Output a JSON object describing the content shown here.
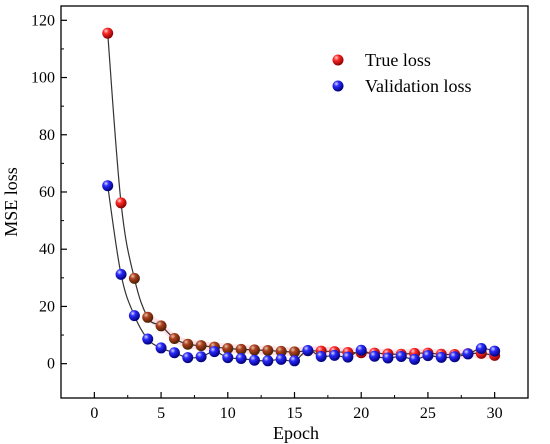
{
  "chart_data": {
    "type": "scatter",
    "xlabel": "Epoch",
    "ylabel": "MSE loss",
    "xlim": [
      -2.5,
      32.5
    ],
    "ylim": [
      -12,
      125
    ],
    "xticks": [
      "0",
      "5",
      "10",
      "15",
      "20",
      "25",
      "30"
    ],
    "yticks": [
      "0",
      "20",
      "40",
      "60",
      "80",
      "100",
      "120"
    ],
    "xtick_values": [
      0,
      5,
      10,
      15,
      20,
      25,
      30
    ],
    "ytick_values": [
      0,
      20,
      40,
      60,
      80,
      100,
      120
    ],
    "grid": false,
    "legend_position": "top-right",
    "series": [
      {
        "name": "True loss",
        "color": "#e0102a",
        "x": [
          1,
          2,
          3,
          4,
          5,
          6,
          7,
          8,
          9,
          10,
          11,
          12,
          13,
          14,
          15,
          16,
          17,
          18,
          19,
          20,
          21,
          22,
          23,
          24,
          25,
          26,
          27,
          28,
          29,
          30
        ],
        "values": [
          115.5,
          56.2,
          29.8,
          16.2,
          13.2,
          8.8,
          6.8,
          6.3,
          5.8,
          5.3,
          5.0,
          4.8,
          4.6,
          4.3,
          4.1,
          4.5,
          4.4,
          4.2,
          3.9,
          3.8,
          3.7,
          3.4,
          3.3,
          3.6,
          3.7,
          3.3,
          3.2,
          3.5,
          3.6,
          2.9
        ]
      },
      {
        "name": "Validation loss",
        "color": "#1f1fe6",
        "x": [
          1,
          2,
          3,
          4,
          5,
          6,
          7,
          8,
          9,
          10,
          11,
          12,
          13,
          14,
          15,
          16,
          17,
          18,
          19,
          20,
          21,
          22,
          23,
          24,
          25,
          26,
          27,
          28,
          29,
          30
        ],
        "values": [
          62.2,
          31.2,
          16.8,
          8.6,
          5.5,
          3.8,
          2.1,
          2.4,
          4.2,
          2.1,
          1.8,
          1.2,
          1.0,
          1.5,
          1.0,
          4.6,
          2.5,
          2.9,
          2.3,
          4.7,
          2.6,
          2.0,
          2.5,
          1.5,
          2.8,
          2.2,
          2.4,
          3.4,
          5.3,
          4.4
        ]
      }
    ]
  }
}
